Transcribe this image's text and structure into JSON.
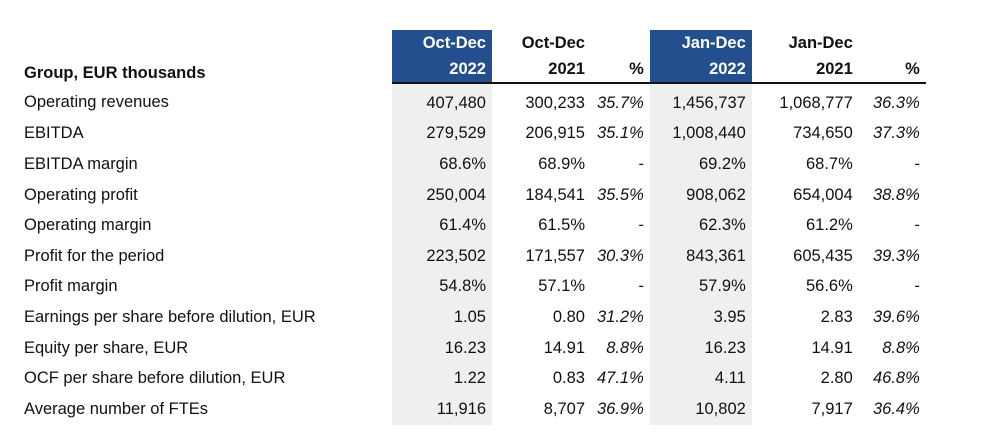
{
  "table": {
    "corner_label": "Group, EUR thousands",
    "headers_top": [
      "Oct-Dec",
      "Oct-Dec",
      "",
      "Jan-Dec",
      "Jan-Dec",
      ""
    ],
    "headers_bottom": [
      "2022",
      "2021",
      "%",
      "2022",
      "2021",
      "%"
    ],
    "highlight_color": "#234f8e",
    "shade_color": "#efefef",
    "rows": [
      {
        "label": "Operating revenues",
        "values": [
          "407,480",
          "300,233",
          "35.7%",
          "1,456,737",
          "1,068,777",
          "36.3%"
        ]
      },
      {
        "label": "EBITDA",
        "values": [
          "279,529",
          "206,915",
          "35.1%",
          "1,008,440",
          "734,650",
          "37.3%"
        ]
      },
      {
        "label": "EBITDA margin",
        "values": [
          "68.6%",
          "68.9%",
          "-",
          "69.2%",
          "68.7%",
          "-"
        ]
      },
      {
        "label": "Operating profit",
        "values": [
          "250,004",
          "184,541",
          "35.5%",
          "908,062",
          "654,004",
          "38.8%"
        ]
      },
      {
        "label": "Operating margin",
        "values": [
          "61.4%",
          "61.5%",
          "-",
          "62.3%",
          "61.2%",
          "-"
        ]
      },
      {
        "label": "Profit for the period",
        "values": [
          "223,502",
          "171,557",
          "30.3%",
          "843,361",
          "605,435",
          "39.3%"
        ]
      },
      {
        "label": "Profit margin",
        "values": [
          "54.8%",
          "57.1%",
          "-",
          "57.9%",
          "56.6%",
          "-"
        ]
      },
      {
        "label": "Earnings per share before dilution, EUR",
        "values": [
          "1.05",
          "0.80",
          "31.2%",
          "3.95",
          "2.83",
          "39.6%"
        ]
      },
      {
        "label": "Equity per share, EUR",
        "values": [
          "16.23",
          "14.91",
          "8.8%",
          "16.23",
          "14.91",
          "8.8%"
        ]
      },
      {
        "label": "OCF per share before dilution, EUR",
        "values": [
          "1.22",
          "0.83",
          "47.1%",
          "4.11",
          "2.80",
          "46.8%"
        ]
      },
      {
        "label": "Average number of FTEs",
        "values": [
          "11,916",
          "8,707",
          "36.9%",
          "10,802",
          "7,917",
          "36.4%"
        ]
      }
    ]
  }
}
